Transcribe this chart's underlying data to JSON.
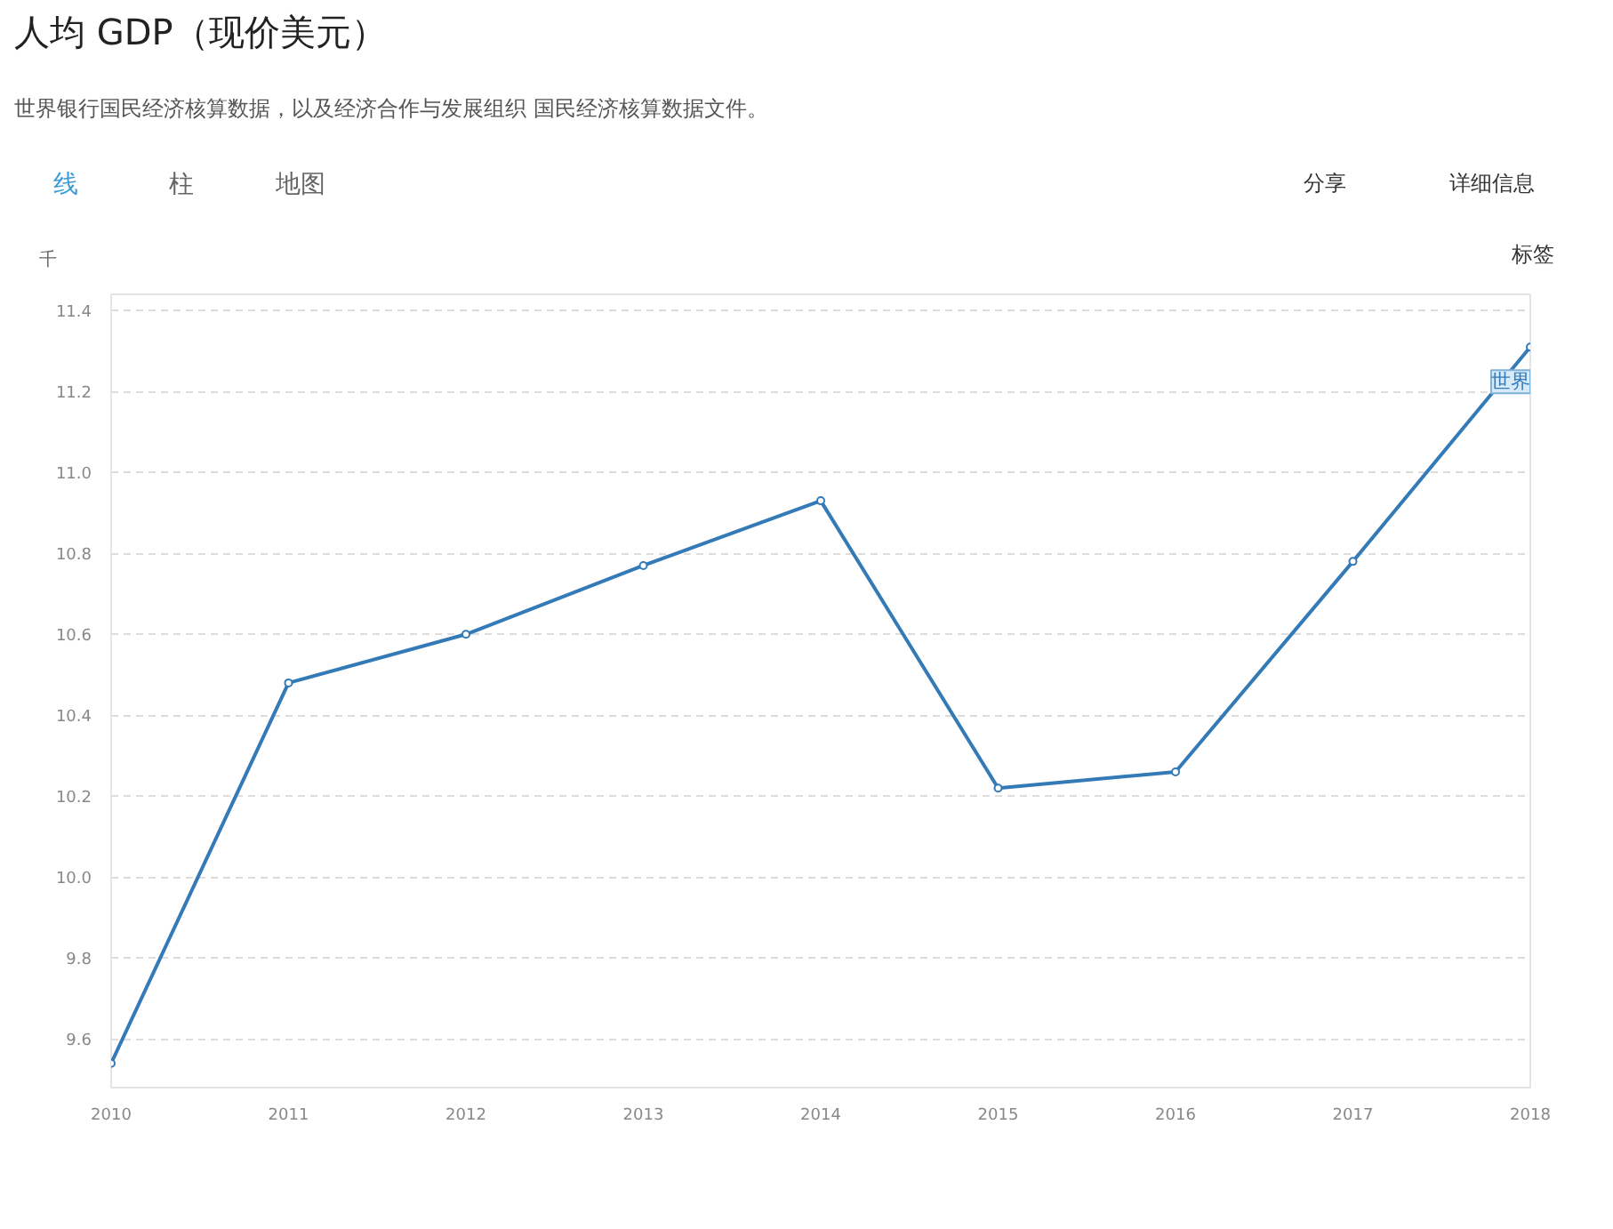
{
  "chart_data": {
    "type": "line",
    "title": "人均 GDP（现价美元）",
    "subtitle": "世界银行国民经济核算数据，以及经济合作与发展组织 国民经济核算数据文件。",
    "ylabel": "千",
    "x": [
      2010,
      2011,
      2012,
      2013,
      2014,
      2015,
      2016,
      2017,
      2018
    ],
    "series": [
      {
        "name": "世界",
        "color": "#337ab7",
        "values": [
          9.54,
          10.48,
          10.6,
          10.77,
          10.93,
          10.22,
          10.26,
          10.78,
          11.31
        ]
      }
    ],
    "xlim": [
      2010,
      2018
    ],
    "xticks": [
      2010,
      2011,
      2012,
      2013,
      2014,
      2015,
      2016,
      2017,
      2018
    ],
    "ylim": [
      9.48,
      11.44
    ],
    "yticks": [
      9.6,
      9.8,
      {
        "value": 10,
        "label": "10.0"
      },
      10.2,
      10.4,
      10.6,
      10.8,
      {
        "value": 11,
        "label": "11.0"
      },
      11.2,
      11.4
    ],
    "grid": "y",
    "marker": "circle",
    "line_style": "solid",
    "legend": false,
    "annotations": [
      "线",
      "柱",
      "地图",
      "分享",
      "详细信息",
      "标签"
    ]
  }
}
